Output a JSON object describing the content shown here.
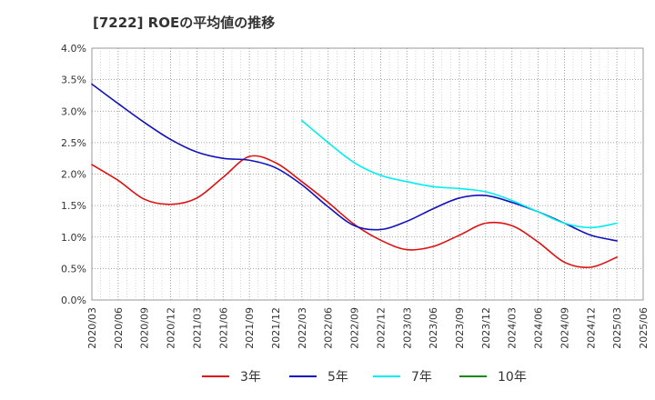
{
  "chart_data": {
    "type": "line",
    "title": "[7222]  ROEの平均値の推移",
    "xlabel": "",
    "ylabel": "",
    "x_ticks": [
      "2020/03",
      "2020/06",
      "2020/09",
      "2020/12",
      "2021/03",
      "2021/06",
      "2021/09",
      "2021/12",
      "2022/03",
      "2022/06",
      "2022/09",
      "2022/12",
      "2023/03",
      "2023/06",
      "2023/09",
      "2023/12",
      "2024/03",
      "2024/06",
      "2024/09",
      "2024/12",
      "2025/03",
      "2025/06"
    ],
    "y_ticks": [
      "0.0%",
      "0.5%",
      "1.0%",
      "1.5%",
      "2.0%",
      "2.5%",
      "3.0%",
      "3.5%",
      "4.0%"
    ],
    "ylim": [
      0,
      4.0
    ],
    "grid": true,
    "legend_position": "bottom",
    "series": [
      {
        "name": "3年",
        "color": "#dd1111",
        "x": [
          "2020/03",
          "2020/06",
          "2020/09",
          "2020/12",
          "2021/03",
          "2021/06",
          "2021/09",
          "2021/12",
          "2022/03",
          "2022/06",
          "2022/09",
          "2022/12",
          "2023/03",
          "2023/06",
          "2023/09",
          "2023/12",
          "2024/03",
          "2024/06",
          "2024/09",
          "2024/12",
          "2025/03"
        ],
        "values": [
          2.15,
          1.9,
          1.6,
          1.52,
          1.62,
          1.95,
          2.28,
          2.18,
          1.88,
          1.55,
          1.2,
          0.95,
          0.8,
          0.85,
          1.03,
          1.22,
          1.18,
          0.92,
          0.6,
          0.52,
          0.68
        ]
      },
      {
        "name": "5年",
        "color": "#1111bb",
        "x": [
          "2020/03",
          "2020/06",
          "2020/09",
          "2020/12",
          "2021/03",
          "2021/06",
          "2021/09",
          "2021/12",
          "2022/03",
          "2022/06",
          "2022/09",
          "2022/12",
          "2023/03",
          "2023/06",
          "2023/09",
          "2023/12",
          "2024/03",
          "2024/06",
          "2024/09",
          "2024/12",
          "2025/03"
        ],
        "values": [
          3.43,
          3.12,
          2.82,
          2.55,
          2.35,
          2.25,
          2.22,
          2.1,
          1.83,
          1.48,
          1.18,
          1.12,
          1.25,
          1.45,
          1.62,
          1.66,
          1.55,
          1.4,
          1.22,
          1.03,
          0.94
        ]
      },
      {
        "name": "7年",
        "color": "#00eeee",
        "x": [
          "2022/03",
          "2022/06",
          "2022/09",
          "2022/12",
          "2023/03",
          "2023/06",
          "2023/09",
          "2023/12",
          "2024/03",
          "2024/06",
          "2024/09",
          "2024/12",
          "2025/03"
        ],
        "values": [
          2.85,
          2.5,
          2.18,
          1.98,
          1.88,
          1.8,
          1.77,
          1.72,
          1.58,
          1.4,
          1.22,
          1.15,
          1.22
        ]
      },
      {
        "name": "10年",
        "color": "#118811",
        "x": [],
        "values": []
      }
    ]
  }
}
